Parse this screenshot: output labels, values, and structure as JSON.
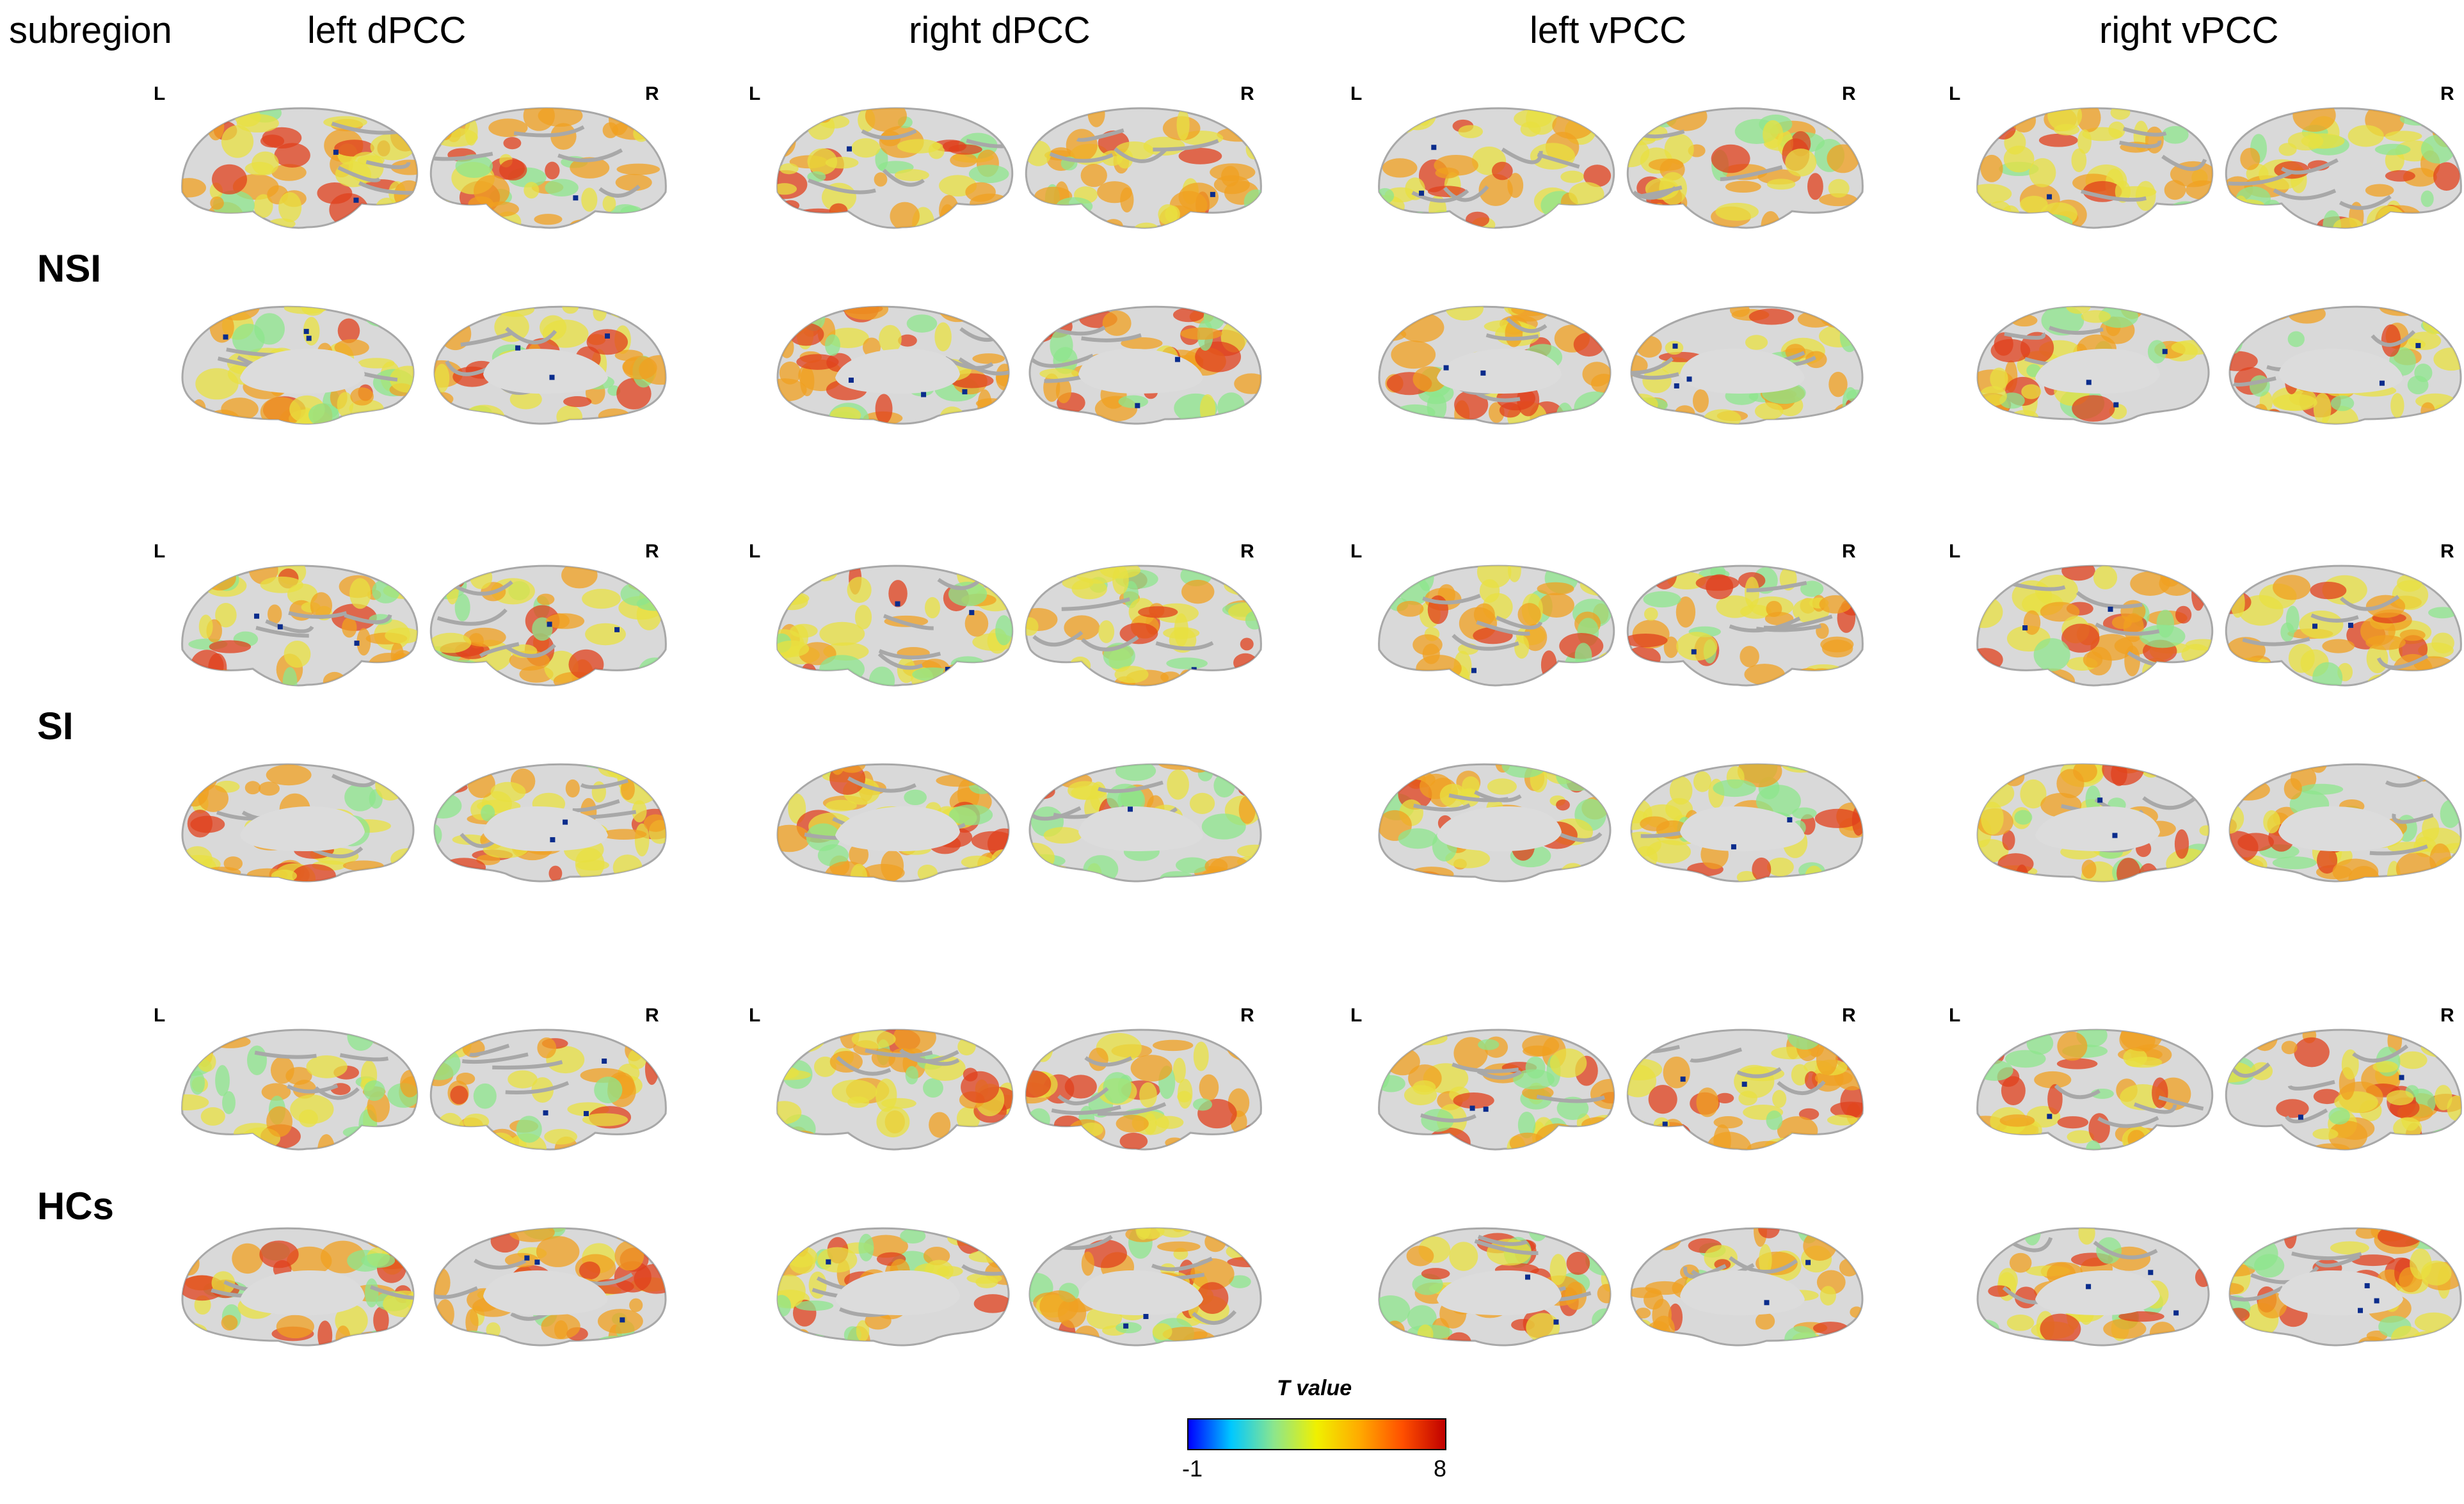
{
  "corner_label": "subregion",
  "columns": [
    "left dPCC",
    "right dPCC",
    "left vPCC",
    "right vPCC"
  ],
  "rows": [
    "NSI",
    "SI",
    "HCs"
  ],
  "hemisphere_labels": {
    "left": "L",
    "right": "R"
  },
  "colorbar": {
    "title": "T value",
    "min_label": "-1",
    "max_label": "8",
    "colors": [
      "#0000ff",
      "#00c8ff",
      "#8ce68c",
      "#f0f000",
      "#ffaa00",
      "#ff5000",
      "#c00000"
    ]
  },
  "colors": {
    "cortex": "#d9d9d9",
    "cortex_shade": "#a8a8a8",
    "activation_high": "#e0401c",
    "activation_mid": "#f0a020",
    "activation_low": "#e8e040",
    "activation_edge": "#8ee68c",
    "negative": "#0a2c8c"
  }
}
